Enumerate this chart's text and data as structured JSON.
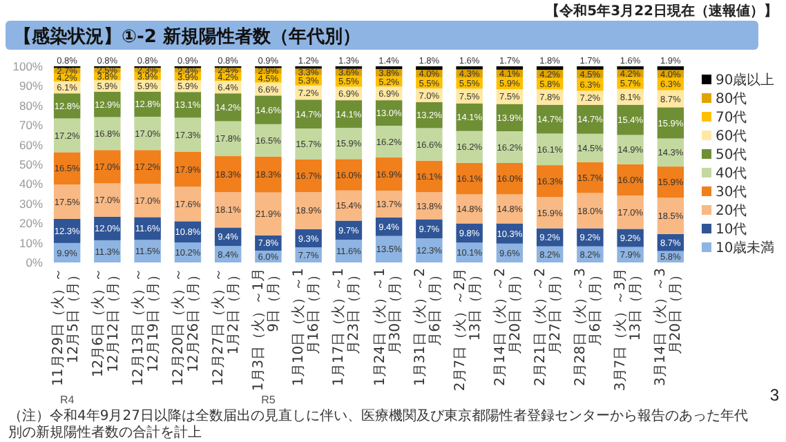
{
  "chart_data": {
    "type": "bar",
    "stacked": true,
    "title": "【感染状況】①-2 新規陽性者数（年代別）",
    "subtitle": "【令和5年3月22日現在（速報値）】",
    "categories": [
      "11月29日（火）～12月5日（月）",
      "12月6日（火）～12月12日（月）",
      "12月13日（火）～12月19日（月）",
      "12月20日（火）～12月26日（月）",
      "12月27日（火）～1月2日（月）",
      "1月3日（火）～1月9日（月）",
      "1月10日（火）～1月16日（月）",
      "1月17日（火）～1月23日（月）",
      "1月24日（火）～1月30日（月）",
      "1月31日（火）～2月6日（月）",
      "2月7日（火）～2月13日（月）",
      "2月14日（火）～2月20日（月）",
      "2月21日（火）～2月27日（月）",
      "2月28日（火）～3月6日（月）",
      "3月7日（火）～3月13日（月）",
      "3月14日（火）～3月20日（月）"
    ],
    "series": [
      {
        "name": "10歳未満",
        "color": "#8db4e2",
        "values": [
          9.9,
          11.3,
          11.5,
          10.2,
          8.4,
          6.0,
          7.7,
          11.6,
          13.5,
          12.3,
          10.1,
          9.6,
          8.2,
          8.2,
          7.9,
          5.8
        ],
        "value_labels": [
          "9.9%",
          "11.3%",
          "11.5%",
          "10.2%",
          "8.4%",
          "6.0%",
          "7.7%",
          "11.6%",
          "13.5%",
          "12.3%",
          "10.1%",
          "9.6%",
          "8.2%",
          "8.2%",
          "7.9%",
          "5.8%"
        ]
      },
      {
        "name": "10代",
        "color": "#2f5597",
        "values": [
          12.3,
          12.0,
          11.6,
          10.8,
          9.4,
          7.8,
          9.3,
          9.7,
          9.4,
          9.7,
          9.8,
          10.3,
          9.2,
          9.2,
          9.2,
          8.7
        ],
        "value_labels": [
          "12.3%",
          "12.0%",
          "11.6%",
          "10.8%",
          "9.4%",
          "7.8%",
          "9.3%",
          "9.7%",
          "9.4%",
          "9.7%",
          "9.8%",
          "10.3%",
          "9.2%",
          "9.2%",
          "9.2%",
          "8.7%"
        ]
      },
      {
        "name": "20代",
        "color": "#f8b984",
        "values": [
          17.5,
          17.0,
          17.0,
          17.6,
          18.1,
          21.9,
          18.9,
          15.4,
          13.7,
          13.8,
          14.8,
          14.8,
          15.9,
          18.0,
          17.0,
          18.5
        ],
        "value_labels": [
          "17.5%",
          "17.0%",
          "17.0%",
          "17.6%",
          "18.1%",
          "21.9%",
          "18.9%",
          "15.4%",
          "13.7%",
          "13.8%",
          "14.8%",
          "14.8%",
          "15.9%",
          "18.0%",
          "17.0%",
          "18.5%"
        ]
      },
      {
        "name": "30代",
        "color": "#f07f1c",
        "values": [
          16.5,
          17.0,
          17.2,
          17.9,
          18.3,
          18.3,
          16.7,
          16.0,
          16.9,
          16.1,
          16.1,
          16.0,
          16.3,
          15.7,
          16.0,
          15.9
        ],
        "value_labels": [
          "16.5%",
          "17.0%",
          "17.2%",
          "17.9%",
          "18.3%",
          "18.3%",
          "16.7%",
          "16.0%",
          "16.9%",
          "16.1%",
          "16.1%",
          "16.0%",
          "16.3%",
          "15.7%",
          "16.0%",
          "15.9%"
        ]
      },
      {
        "name": "40代",
        "color": "#c4d9a0",
        "values": [
          17.2,
          16.8,
          17.0,
          17.3,
          17.8,
          16.5,
          15.7,
          15.9,
          16.2,
          16.6,
          16.2,
          16.2,
          16.1,
          14.5,
          14.9,
          14.3
        ],
        "value_labels": [
          "17.2%",
          "16.8%",
          "17.0%",
          "17.3%",
          "17.8%",
          "16.5%",
          "15.7%",
          "15.9%",
          "16.2%",
          "16.6%",
          "16.2%",
          "16.2%",
          "16.1%",
          "14.5%",
          "14.9%",
          "14.3%"
        ]
      },
      {
        "name": "50代",
        "color": "#6f8f35",
        "values": [
          12.8,
          12.9,
          12.8,
          13.1,
          14.2,
          14.6,
          14.7,
          14.1,
          13.0,
          13.2,
          14.1,
          13.9,
          14.7,
          14.7,
          15.4,
          15.9
        ],
        "value_labels": [
          "12.8%",
          "12.9%",
          "12.8%",
          "13.1%",
          "14.2%",
          "14.6%",
          "14.7%",
          "14.1%",
          "13.0%",
          "13.2%",
          "14.1%",
          "13.9%",
          "14.7%",
          "14.7%",
          "15.4%",
          "15.9%"
        ]
      },
      {
        "name": "60代",
        "color": "#ffe8a3",
        "values": [
          6.1,
          5.9,
          5.9,
          5.9,
          6.4,
          6.6,
          7.2,
          6.9,
          6.9,
          7.0,
          7.5,
          7.5,
          7.8,
          7.2,
          8.1,
          8.7
        ],
        "value_labels": [
          "6.1%",
          "5.9%",
          "5.9%",
          "5.9%",
          "6.4%",
          "6.6%",
          "7.2%",
          "6.9%",
          "6.9%",
          "7.0%",
          "7.5%",
          "7.5%",
          "7.8%",
          "7.2%",
          "8.1%",
          "8.7%"
        ]
      },
      {
        "name": "70代",
        "color": "#ffc000",
        "values": [
          4.2,
          3.8,
          3.9,
          3.9,
          4.2,
          4.5,
          5.3,
          5.5,
          5.2,
          5.5,
          5.5,
          5.9,
          5.8,
          6.3,
          5.7,
          6.3
        ],
        "value_labels": [
          "4.2%",
          "3.8%",
          "3.9%",
          "3.9%",
          "4.2%",
          "4.5%",
          "5.3%",
          "5.5%",
          "5.2%",
          "5.5%",
          "5.5%",
          "5.9%",
          "5.8%",
          "6.3%",
          "5.7%",
          "6.3%"
        ]
      },
      {
        "name": "80代",
        "color": "#e0a400",
        "values": [
          2.7,
          2.5,
          2.3,
          2.4,
          2.4,
          2.9,
          3.3,
          3.6,
          3.8,
          4.0,
          4.3,
          4.1,
          4.2,
          4.5,
          4.2,
          4.0
        ],
        "value_labels": [
          "2.7%",
          "2.5%",
          "2.3%",
          "2.4%",
          "2.4%",
          "2.9%",
          "3.3%",
          "3.6%",
          "3.8%",
          "4.0%",
          "4.3%",
          "4.1%",
          "4.2%",
          "4.5%",
          "4.2%",
          "4.0%"
        ]
      },
      {
        "name": "90歳以上",
        "color": "#000000",
        "values": [
          0.8,
          0.8,
          0.8,
          0.9,
          0.8,
          0.9,
          1.2,
          1.3,
          1.4,
          1.8,
          1.6,
          1.7,
          1.8,
          1.7,
          1.6,
          1.9
        ],
        "value_labels": [
          "0.8%",
          "0.8%",
          "0.8%",
          "0.9%",
          "0.8%",
          "0.9%",
          "1.2%",
          "1.3%",
          "1.4%",
          "1.8%",
          "1.6%",
          "1.7%",
          "1.8%",
          "1.7%",
          "1.6%",
          "1.9%"
        ]
      }
    ],
    "ylim": [
      0,
      100
    ],
    "yticks": [
      {
        "value": 0,
        "label": "0%"
      },
      {
        "value": 10,
        "label": "10%"
      },
      {
        "value": 20,
        "label": "20%"
      },
      {
        "value": 30,
        "label": "30%"
      },
      {
        "value": 40,
        "label": "40%"
      },
      {
        "value": 50,
        "label": "50%"
      },
      {
        "value": 60,
        "label": "60%"
      },
      {
        "value": 70,
        "label": "70%"
      },
      {
        "value": 80,
        "label": "80%"
      },
      {
        "value": 90,
        "label": "90%"
      },
      {
        "value": 100,
        "label": "100%"
      }
    ],
    "legend": "right",
    "annotations": [
      "（注）令和4年9月27日以降は全数届出の見直しに伴い、医療機関及び東京都陽性者登録センターから報告のあった年代別の新規陽性者数の合計を計上",
      "3",
      "R4",
      "R5"
    ]
  }
}
